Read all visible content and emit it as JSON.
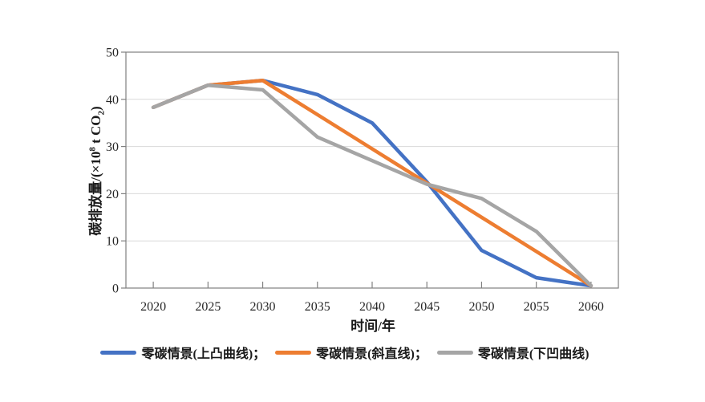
{
  "colors": {
    "axis_line": "#808080",
    "gridline": "#d9d9d9",
    "tick_text": "#262626",
    "series_blue": "#4472C4",
    "series_orange": "#ED7D31",
    "series_gray": "#A5A5A5",
    "background": "#ffffff"
  },
  "y_axis": {
    "title_pre": "碳排放量/(×10",
    "title_sup": "8",
    "title_mid": " t CO",
    "title_sub": "2",
    "title_post": ")"
  },
  "chart_data": {
    "type": "line",
    "title": "",
    "xlabel": "时间/年",
    "ylabel": "碳排放量/(×10⁸ t CO₂)",
    "categories": [
      "2020",
      "2025",
      "2030",
      "2035",
      "2040",
      "2045",
      "2050",
      "2055",
      "2060"
    ],
    "y_ticks": [
      "0",
      "10",
      "20",
      "30",
      "40",
      "50"
    ],
    "ylim": [
      0,
      50
    ],
    "grid": "horizontal",
    "legend_position": "bottom",
    "series": [
      {
        "name": "零碳情景(上凸曲线)",
        "legend_label": "零碳情景(上凸曲线)；",
        "color": "#4472C4",
        "values": [
          38.3,
          43,
          44,
          41,
          35,
          22.5,
          8,
          2.2,
          0.5
        ]
      },
      {
        "name": "零碳情景(斜直线)",
        "legend_label": "零碳情景(斜直线)；",
        "color": "#ED7D31",
        "values": [
          38.3,
          43,
          44,
          36.75,
          29.5,
          22.25,
          15,
          7.75,
          0.5
        ]
      },
      {
        "name": "零碳情景(下凹曲线)",
        "legend_label": "零碳情景(下凹曲线)",
        "color": "#A5A5A5",
        "values": [
          38.3,
          43,
          42,
          32,
          27,
          22,
          19,
          12,
          0.5
        ]
      }
    ]
  }
}
